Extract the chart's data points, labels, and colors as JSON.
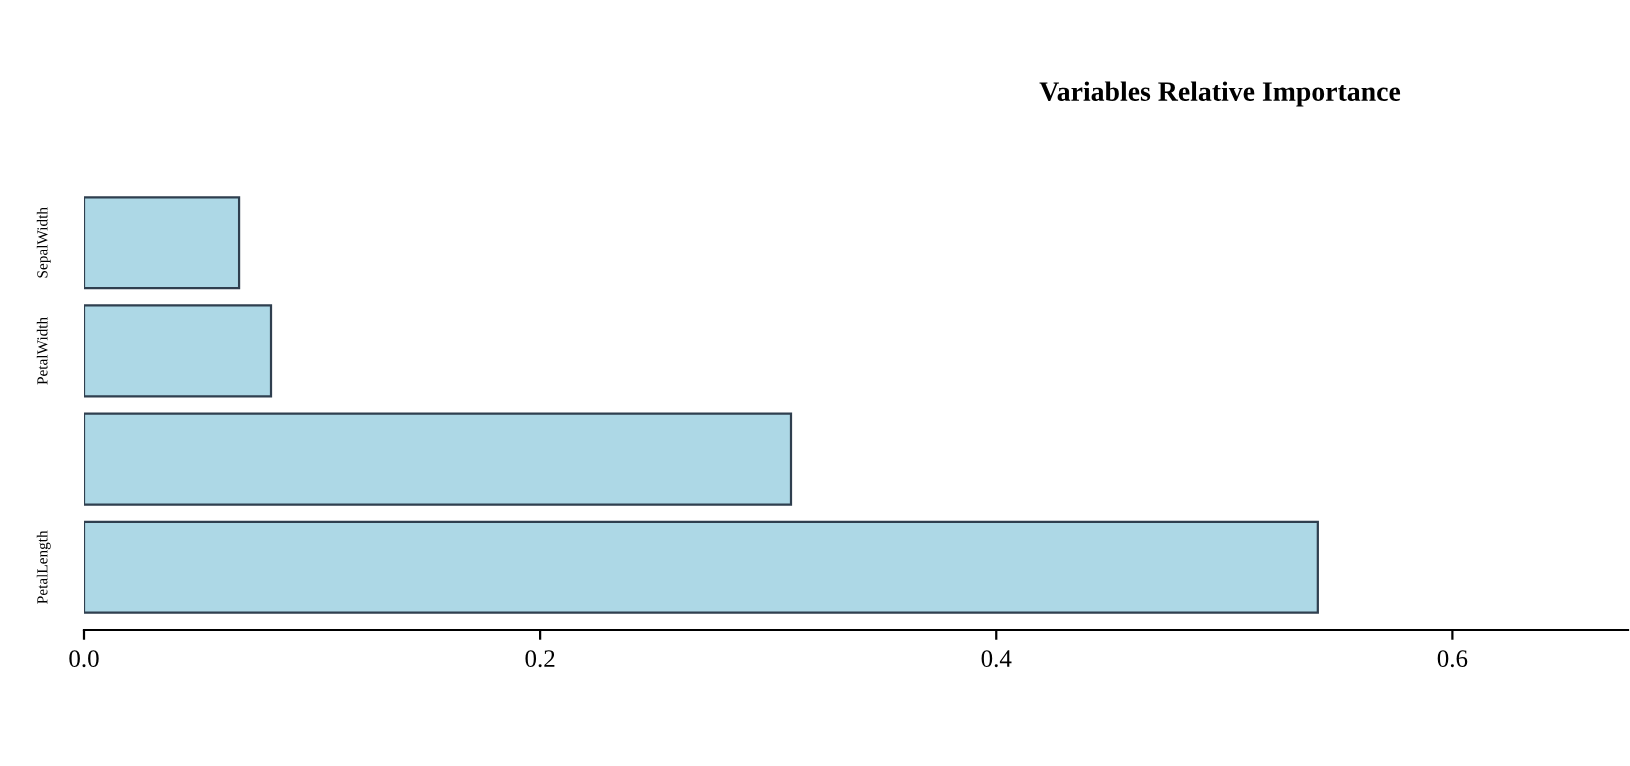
{
  "chart_data": {
    "type": "bar",
    "orientation": "horizontal",
    "title": "Variables Relative Importance",
    "categories": [
      "SepalWidth",
      "PetalWidth",
      null,
      "PetalLength"
    ],
    "values": [
      0.068,
      0.082,
      0.31,
      0.541
    ],
    "color": "#add8e6",
    "xlim": [
      0,
      0.677
    ],
    "xticks": [
      {
        "value": 0,
        "label": "0.0"
      },
      {
        "value": 0.2,
        "label": "0.2"
      },
      {
        "value": 0.4,
        "label": "0.4"
      },
      {
        "value": 0.6,
        "label": "0.6"
      }
    ],
    "grid": false,
    "legend": false
  }
}
